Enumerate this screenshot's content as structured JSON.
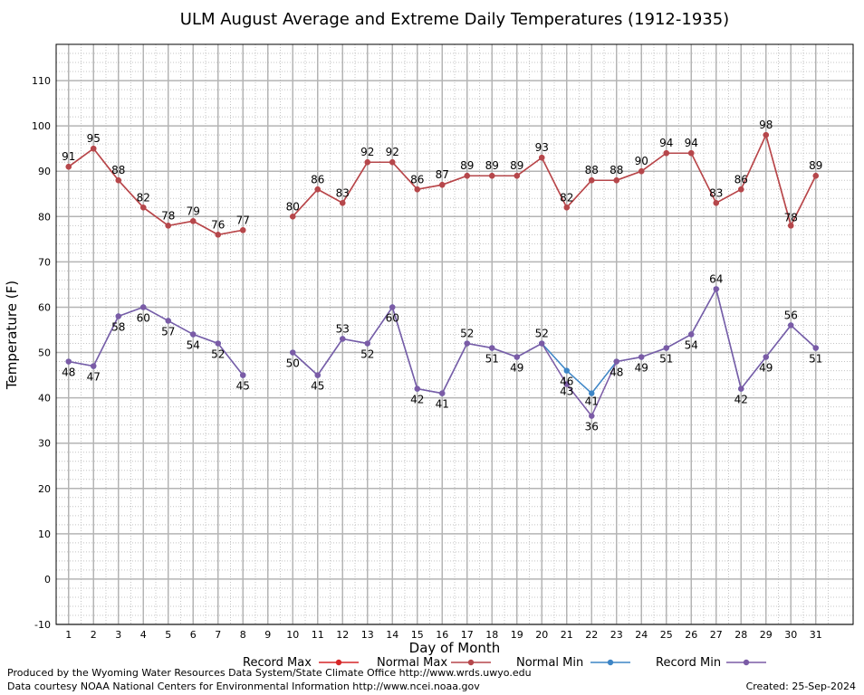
{
  "chart_data": {
    "type": "line",
    "title": "ULM August Average and Extreme Daily Temperatures (1912-1935)",
    "xlabel": "Day of Month",
    "ylabel": "Temperature (F)",
    "ylim": [
      -10,
      118
    ],
    "yticks": [
      -10,
      0,
      10,
      20,
      30,
      40,
      50,
      60,
      70,
      80,
      90,
      100,
      110
    ],
    "x": [
      1,
      2,
      3,
      4,
      5,
      6,
      7,
      8,
      9,
      10,
      11,
      12,
      13,
      14,
      15,
      16,
      17,
      18,
      19,
      20,
      21,
      22,
      23,
      24,
      25,
      26,
      27,
      28,
      29,
      30,
      31
    ],
    "grid": true,
    "legend_position": "bottom",
    "series": [
      {
        "name": "Record Max",
        "color": "#d62728",
        "values": [
          91,
          95,
          88,
          82,
          78,
          79,
          76,
          77,
          null,
          80,
          86,
          83,
          92,
          92,
          86,
          87,
          89,
          89,
          89,
          93,
          82,
          88,
          88,
          90,
          94,
          94,
          83,
          86,
          98,
          78,
          89
        ]
      },
      {
        "name": "Normal Max",
        "color": "#b5474b",
        "values": [
          91,
          95,
          88,
          82,
          78,
          79,
          76,
          77,
          null,
          80,
          86,
          83,
          92,
          92,
          86,
          87,
          89,
          89,
          89,
          93,
          82,
          88,
          88,
          90,
          94,
          94,
          83,
          86,
          98,
          78,
          89
        ]
      },
      {
        "name": "Normal Min",
        "color": "#3d85c6",
        "values": [
          48,
          47,
          58,
          60,
          57,
          54,
          52,
          45,
          null,
          50,
          45,
          53,
          52,
          60,
          42,
          41,
          52,
          51,
          49,
          52,
          46,
          41,
          48,
          49,
          51,
          54,
          64,
          42,
          49,
          56,
          51
        ]
      },
      {
        "name": "Record Min",
        "color": "#7b5ba6",
        "values": [
          48,
          47,
          58,
          60,
          57,
          54,
          52,
          45,
          null,
          50,
          45,
          53,
          52,
          60,
          42,
          41,
          52,
          51,
          49,
          52,
          43,
          36,
          48,
          49,
          51,
          54,
          64,
          42,
          49,
          56,
          51
        ]
      }
    ]
  },
  "footer": {
    "producer": "Produced by the Wyoming Water Resources Data System/State Climate Office http://www.wrds.uwyo.edu",
    "courtesy": "Data courtesy NOAA National Centers for Environmental Information http://www.ncei.noaa.gov",
    "created": "Created: 25-Sep-2024"
  }
}
